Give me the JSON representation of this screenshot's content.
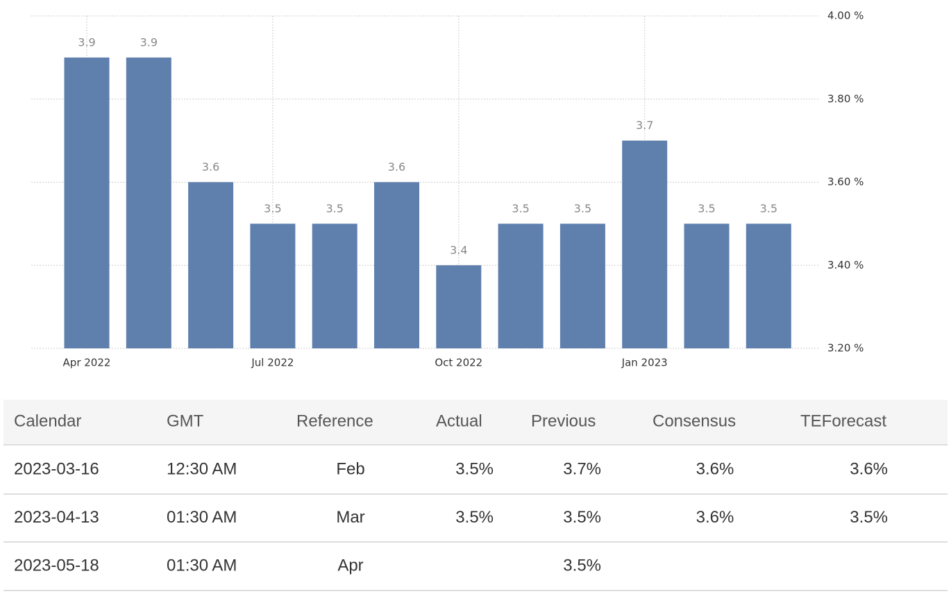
{
  "chart_data": {
    "type": "bar",
    "categories": [
      "Apr 2022",
      null,
      null,
      "Jul 2022",
      null,
      null,
      "Oct 2022",
      null,
      null,
      "Jan 2023",
      null,
      null
    ],
    "values": [
      3.9,
      3.9,
      3.6,
      3.5,
      3.5,
      3.6,
      3.4,
      3.5,
      3.5,
      3.7,
      3.5,
      3.5
    ],
    "color": "#5f7fad",
    "ylim": [
      3.2,
      4.0
    ],
    "yticks": [
      {
        "value": 3.2,
        "label": "3.20 %"
      },
      {
        "value": 3.4,
        "label": "3.40 %"
      },
      {
        "value": 3.6,
        "label": "3.60 %"
      },
      {
        "value": 3.8,
        "label": "3.80 %"
      },
      {
        "value": 4.0,
        "label": "4.00 %"
      }
    ],
    "grid": true
  },
  "table": {
    "header": [
      "Calendar",
      "GMT",
      "Reference",
      "Actual",
      "Previous",
      "Consensus",
      "TEForecast"
    ],
    "rows": [
      [
        "2023-03-16",
        "12:30 AM",
        "Feb",
        "3.5%",
        "3.7%",
        "3.6%",
        "3.6%"
      ],
      [
        "2023-04-13",
        "01:30 AM",
        "Mar",
        "3.5%",
        "3.5%",
        "3.6%",
        "3.5%"
      ],
      [
        "2023-05-18",
        "01:30 AM",
        "Apr",
        null,
        "3.5%",
        null,
        null
      ]
    ]
  }
}
